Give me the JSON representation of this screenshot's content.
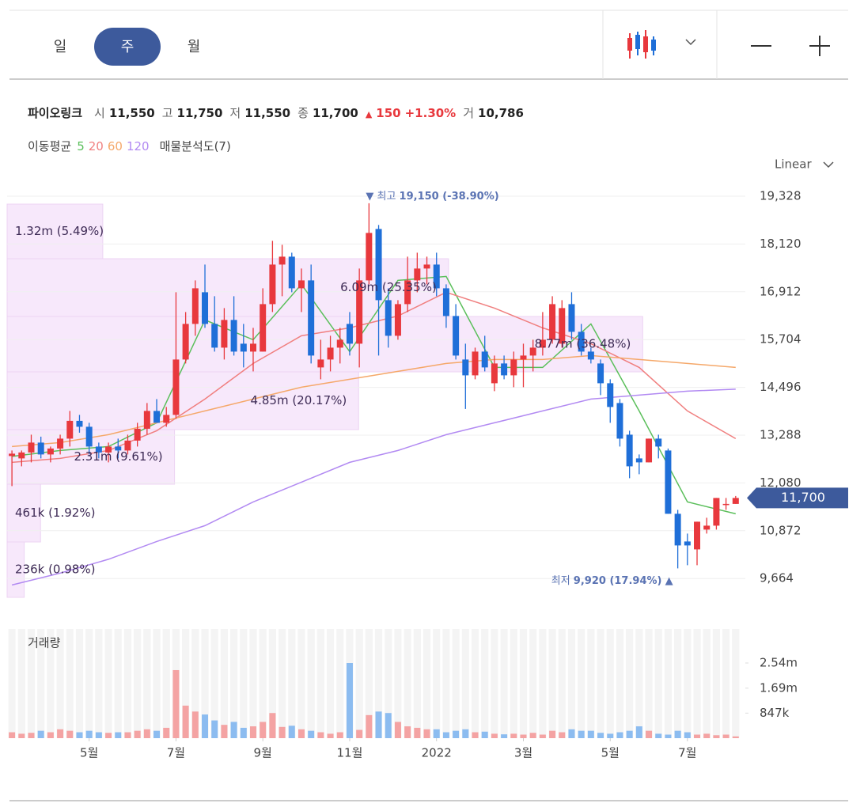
{
  "toolbar": {
    "tabs": [
      "일",
      "주",
      "월"
    ],
    "active": 1
  },
  "info": {
    "name": "파이오링크",
    "fields": [
      {
        "label": "시",
        "value": "11,550"
      },
      {
        "label": "고",
        "value": "11,750"
      },
      {
        "label": "저",
        "value": "11,550"
      },
      {
        "label": "종",
        "value": "11,700"
      }
    ],
    "change": "150",
    "change_pct": "+1.30%",
    "volume_label": "거",
    "volume": "10,786"
  },
  "indicators": {
    "label": "이동평균",
    "profile_label": "매물분석도(7)"
  },
  "scale_label": "Linear",
  "chart_data": [
    {
      "type": "candlestick",
      "open": [
        12760,
        12700,
        12850,
        13100,
        12800,
        12950,
        13200,
        13650,
        13500,
        13000,
        12850,
        13000,
        12900,
        13150,
        13450,
        13900,
        13600,
        13800,
        15200,
        16100,
        16900,
        16100,
        15500,
        16200,
        15600,
        15400,
        15400,
        16600,
        17600,
        17800,
        17000,
        17200,
        15000,
        15200,
        15500,
        16100,
        15600,
        17200,
        18500,
        16700,
        15800,
        16600,
        17200,
        17500,
        17600,
        17000,
        16300,
        15200,
        14800,
        15400,
        14600,
        15100,
        14800,
        15200,
        15300,
        15500,
        15700,
        15600,
        16600,
        15900,
        15400,
        15100,
        14600,
        14100,
        13300,
        12700,
        12600,
        13200,
        12900,
        11300,
        10600,
        10400,
        10900,
        11000,
        11550,
        11550
      ],
      "high": [
        12900,
        12900,
        13300,
        13250,
        13000,
        13300,
        13900,
        13800,
        13600,
        13100,
        13100,
        13200,
        13300,
        13600,
        14100,
        14200,
        14000,
        16900,
        16400,
        17200,
        17600,
        16800,
        16500,
        16800,
        16100,
        16000,
        17000,
        18200,
        18100,
        17900,
        17500,
        17600,
        15700,
        15800,
        16000,
        16400,
        17500,
        19150,
        18600,
        17000,
        16700,
        17800,
        17900,
        17800,
        17900,
        17100,
        16600,
        15600,
        15500,
        15800,
        15300,
        15300,
        15400,
        15600,
        15700,
        16400,
        16800,
        16700,
        16900,
        16100,
        15500,
        15200,
        14700,
        14200,
        13400,
        12800,
        13200,
        13300,
        12950,
        11400,
        10800,
        11100,
        11200,
        11700,
        11700,
        11750
      ],
      "low": [
        12000,
        12500,
        12600,
        12700,
        12600,
        12800,
        13000,
        13350,
        12800,
        12700,
        12600,
        12700,
        12800,
        13000,
        13300,
        13600,
        13500,
        13700,
        15100,
        15800,
        16000,
        15400,
        15200,
        15300,
        15000,
        14900,
        15400,
        16400,
        16800,
        16900,
        16400,
        15100,
        14700,
        14900,
        15100,
        15300,
        15000,
        17100,
        15300,
        15500,
        15700,
        16400,
        16900,
        17100,
        16800,
        16000,
        15200,
        13950,
        14700,
        14900,
        14400,
        14700,
        14500,
        14500,
        14900,
        15300,
        15600,
        15500,
        15700,
        15300,
        15100,
        14300,
        13600,
        13000,
        12200,
        12300,
        12600,
        12700,
        11300,
        9920,
        10000,
        10000,
        10800,
        10900,
        11400,
        11550
      ],
      "close": [
        12820,
        12850,
        13100,
        12800,
        12950,
        13200,
        13650,
        13500,
        13000,
        12850,
        13000,
        12900,
        13150,
        13450,
        13900,
        13600,
        13800,
        15200,
        16100,
        17000,
        16100,
        15500,
        16200,
        15400,
        15400,
        15600,
        16600,
        17600,
        17800,
        17000,
        17200,
        15300,
        15200,
        15500,
        15700,
        15600,
        17200,
        18400,
        16700,
        15800,
        16600,
        17200,
        17500,
        17600,
        17000,
        16300,
        15300,
        14800,
        15400,
        15000,
        15100,
        14800,
        15200,
        15300,
        15500,
        15700,
        16600,
        16500,
        15900,
        15400,
        15200,
        14600,
        14000,
        13200,
        12500,
        12600,
        13200,
        13000,
        11300,
        10500,
        10500,
        11100,
        11000,
        11700,
        11550,
        11700
      ],
      "up_color": "#e8383d",
      "down_color": "#1f6fd8",
      "xlim": [
        -0.5,
        76
      ],
      "ylim": [
        9088,
        19728
      ],
      "yticks": [
        {
          "value": 19328,
          "label": "19,328"
        },
        {
          "value": 18120,
          "label": "18,120"
        },
        {
          "value": 16912,
          "label": "16,912"
        },
        {
          "value": 15704,
          "label": "15,704"
        },
        {
          "value": 14496,
          "label": "14,496"
        },
        {
          "value": 13288,
          "label": "13,288"
        },
        {
          "value": 12080,
          "label": "12,080"
        },
        {
          "value": 10872,
          "label": "10,872"
        },
        {
          "value": 9664,
          "label": "9,664"
        }
      ],
      "grid": true,
      "series": [
        {
          "name": "5",
          "color": "#5bbf5b",
          "x": [
            0,
            5,
            10,
            15,
            20,
            25,
            30,
            35,
            40,
            45,
            50,
            55,
            60,
            65,
            70,
            75
          ],
          "values": [
            12750,
            12900,
            13000,
            13600,
            16200,
            15700,
            17100,
            15400,
            17200,
            17300,
            15000,
            15000,
            16100,
            13900,
            11600,
            11300
          ]
        },
        {
          "name": "20",
          "color": "#f07f7f",
          "x": [
            0,
            5,
            10,
            15,
            20,
            25,
            30,
            35,
            40,
            45,
            50,
            55,
            60,
            65,
            70,
            75
          ],
          "values": [
            12600,
            12700,
            12900,
            13400,
            14200,
            15100,
            15800,
            16000,
            16300,
            16900,
            16500,
            16000,
            15600,
            15000,
            13900,
            13200
          ]
        },
        {
          "name": "60",
          "color": "#f5a86a",
          "x": [
            0,
            5,
            10,
            15,
            20,
            25,
            30,
            35,
            40,
            45,
            50,
            55,
            60,
            65,
            70,
            75
          ],
          "values": [
            13000,
            13100,
            13300,
            13600,
            13900,
            14200,
            14500,
            14700,
            14900,
            15100,
            15200,
            15200,
            15300,
            15200,
            15100,
            15000
          ]
        },
        {
          "name": "120",
          "color": "#b28af2",
          "x": [
            0,
            5,
            10,
            15,
            20,
            25,
            30,
            35,
            40,
            45,
            50,
            55,
            60,
            65,
            70,
            75
          ],
          "values": [
            9500,
            9800,
            10150,
            10600,
            11000,
            11600,
            12100,
            12600,
            12900,
            13300,
            13600,
            13900,
            14200,
            14300,
            14400,
            14450
          ]
        }
      ],
      "volume_profile": {
        "color": "#f7e8fb",
        "bands": [
          {
            "low": 17748,
            "high": 19128,
            "volume": 1320000,
            "label": "1.32m (5.49%)"
          },
          {
            "low": 16288,
            "high": 17748,
            "volume": 6090000,
            "label": "6.09m (25.35%)"
          },
          {
            "low": 14888,
            "high": 16288,
            "volume": 8770000,
            "label": "8.77m (36.48%)"
          },
          {
            "low": 13428,
            "high": 14888,
            "volume": 4850000,
            "label": "4.85m (20.17%)"
          },
          {
            "low": 12048,
            "high": 13428,
            "volume": 2310000,
            "label": "2.31m (9.61%)"
          },
          {
            "low": 10588,
            "high": 12048,
            "volume": 461000,
            "label": "461k (1.92%)"
          },
          {
            "low": 9188,
            "high": 10588,
            "volume": 236000,
            "label": "236k (0.98%)"
          }
        ]
      },
      "annotations": [
        {
          "label": "최고",
          "value": 19150,
          "text": "19,150 (-38.90%)",
          "x": 37
        },
        {
          "label": "최저",
          "value": 9920,
          "text": "9,920 (17.94%)",
          "x": 69
        }
      ],
      "last": {
        "value": 11700,
        "label": "11,700",
        "color": "#3d5a9c"
      }
    },
    {
      "type": "bar",
      "title": "거래량",
      "values": [
        200000,
        150000,
        180000,
        250000,
        200000,
        300000,
        250000,
        200000,
        250000,
        200000,
        180000,
        200000,
        200000,
        250000,
        300000,
        250000,
        350000,
        2300000,
        1100000,
        900000,
        800000,
        600000,
        450000,
        550000,
        350000,
        400000,
        550000,
        850000,
        380000,
        420000,
        300000,
        250000,
        200000,
        150000,
        200000,
        2540000,
        280000,
        780000,
        900000,
        850000,
        550000,
        400000,
        350000,
        300000,
        300000,
        200000,
        250000,
        300000,
        200000,
        220000,
        150000,
        130000,
        150000,
        120000,
        180000,
        120000,
        250000,
        200000,
        300000,
        250000,
        250000,
        180000,
        150000,
        200000,
        250000,
        400000,
        250000,
        150000,
        120000,
        250000,
        200000,
        120000,
        150000,
        100000,
        120000,
        60000
      ],
      "up_color": "#f4a3a3",
      "down_color": "#8cbcf0",
      "xlim": [
        -0.5,
        76
      ],
      "ylim": [
        0,
        3690000
      ],
      "yticks": [
        {
          "value": 2540000,
          "label": "2.54m"
        },
        {
          "value": 1690000,
          "label": "1.69m"
        },
        {
          "value": 847000,
          "label": "847k"
        }
      ],
      "xticks": [
        {
          "value": 8,
          "label": "5월"
        },
        {
          "value": 17,
          "label": "7월"
        },
        {
          "value": 26,
          "label": "9월"
        },
        {
          "value": 35,
          "label": "11월"
        },
        {
          "value": 44,
          "label": "2022"
        },
        {
          "value": 53,
          "label": "3월"
        },
        {
          "value": 62,
          "label": "5월"
        },
        {
          "value": 70,
          "label": "7월"
        }
      ]
    }
  ]
}
